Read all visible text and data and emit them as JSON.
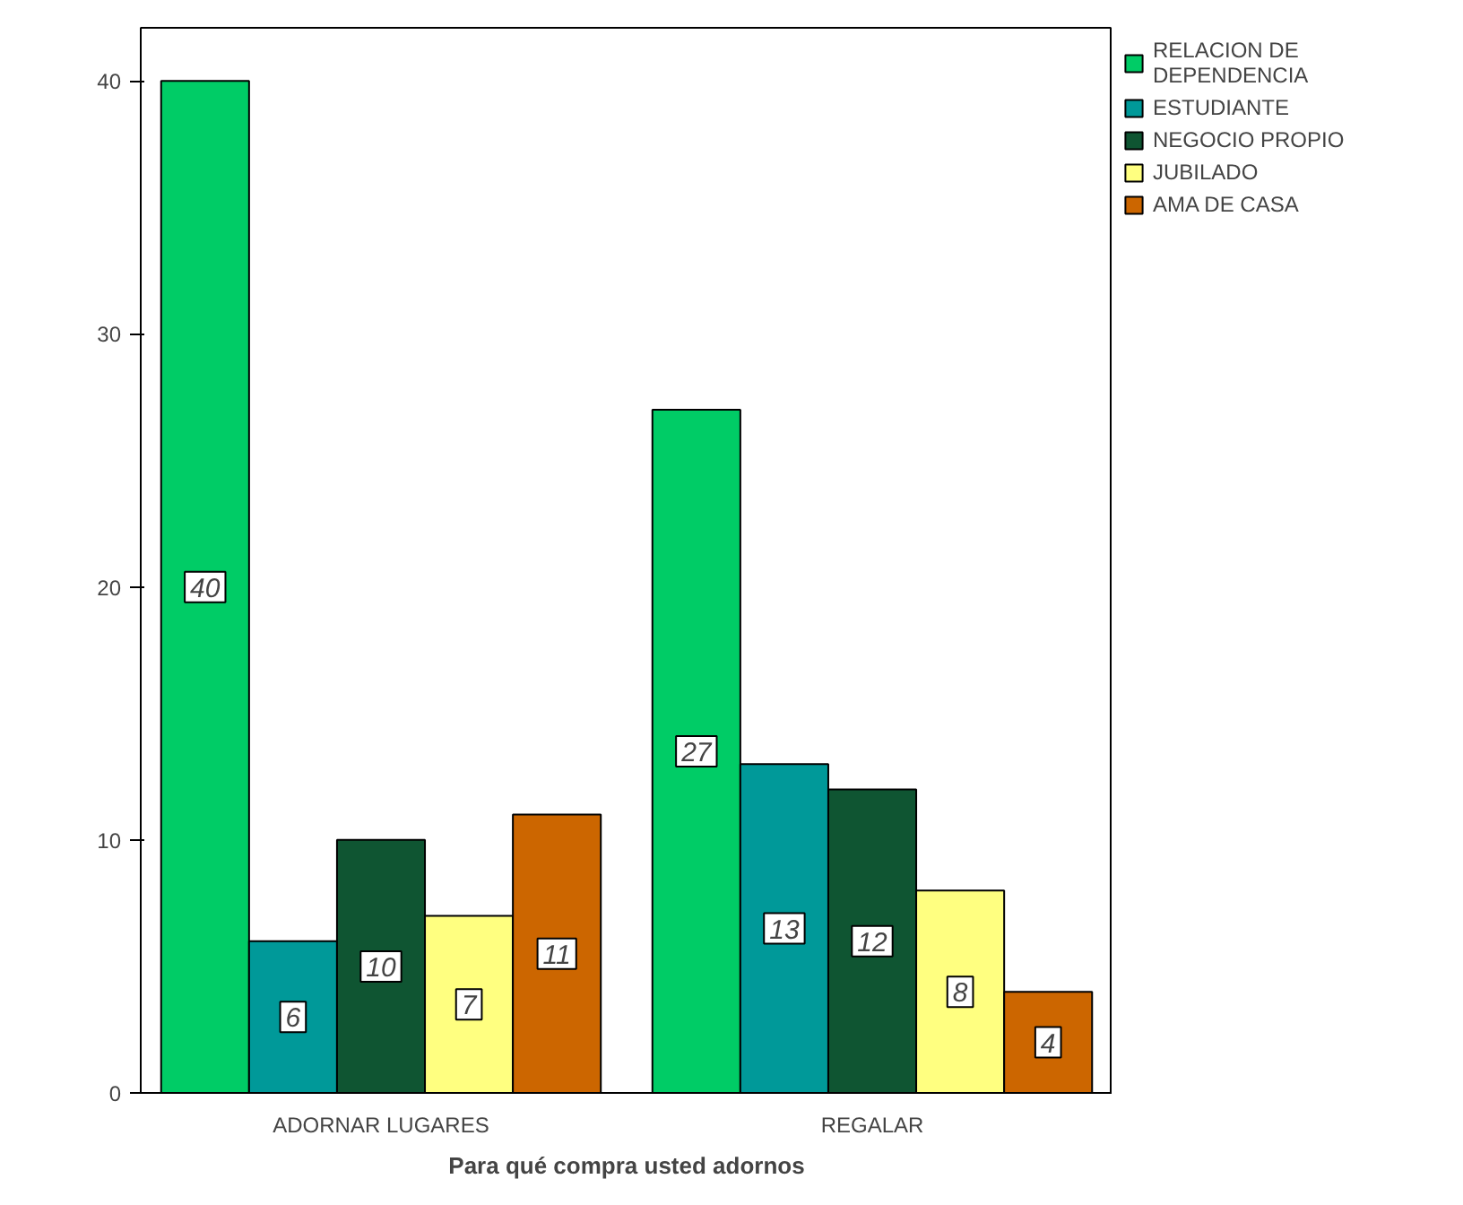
{
  "chart_data": {
    "type": "bar",
    "xlabel": "Para qué compra usted adornos",
    "categories": [
      "ADORNAR LUGARES",
      "REGALAR"
    ],
    "series": [
      {
        "name": "RELACION DE\nDEPENDENCIA",
        "color": "#00cc66",
        "values": [
          40,
          27
        ]
      },
      {
        "name": "ESTUDIANTE",
        "color": "#009999",
        "values": [
          6,
          13
        ]
      },
      {
        "name": "NEGOCIO PROPIO",
        "color": "#0f5532",
        "values": [
          10,
          12
        ]
      },
      {
        "name": "JUBILADO",
        "color": "#ffff80",
        "values": [
          7,
          8
        ]
      },
      {
        "name": "AMA DE CASA",
        "color": "#cc6600",
        "values": [
          11,
          4
        ]
      }
    ],
    "ylim": [
      0,
      42.1
    ],
    "yticks": [
      0,
      10,
      20,
      30,
      40
    ],
    "data_labels": true,
    "legend": "top right",
    "grid": false
  }
}
